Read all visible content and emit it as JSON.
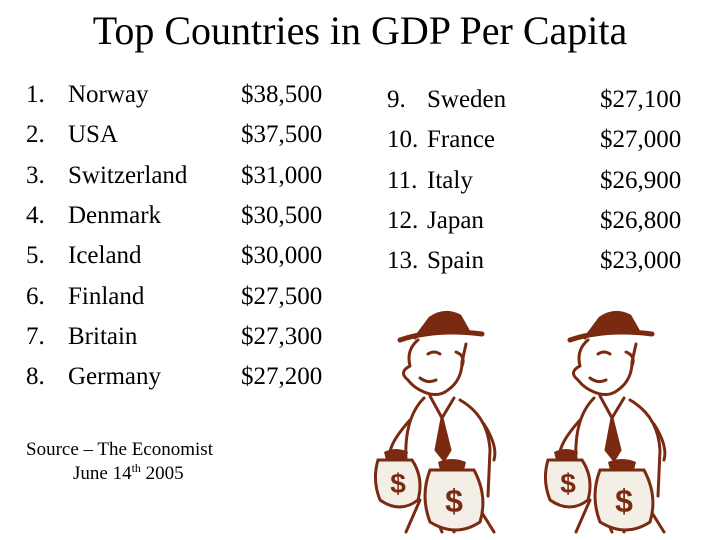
{
  "slide": {
    "title": "Top Countries in GDP Per Capita",
    "left_rows": [
      {
        "rank": "1.",
        "country": "Norway",
        "gdp": "$38,500"
      },
      {
        "rank": "2.",
        "country": "USA",
        "gdp": "$37,500"
      },
      {
        "rank": "3.",
        "country": "Switzerland",
        "gdp": "$31,000"
      },
      {
        "rank": "4.",
        "country": "Denmark",
        "gdp": "$30,500"
      },
      {
        "rank": "5.",
        "country": "Iceland",
        "gdp": "$30,000"
      },
      {
        "rank": "6.",
        "country": "Finland",
        "gdp": "$27,500"
      },
      {
        "rank": "7.",
        "country": "Britain",
        "gdp": "$27,300"
      },
      {
        "rank": "8.",
        "country": "Germany",
        "gdp": "$27,200"
      }
    ],
    "right_rows": [
      {
        "rank": "9.",
        "country": "Sweden",
        "gdp": "$27,100"
      },
      {
        "rank": "10.",
        "country": "France",
        "gdp": "$27,000"
      },
      {
        "rank": "11.",
        "country": "Italy",
        "gdp": "$26,900"
      },
      {
        "rank": "12.",
        "country": "Japan",
        "gdp": "$26,800"
      },
      {
        "rank": "13.",
        "country": "Spain",
        "gdp": "$23,000"
      }
    ],
    "source": {
      "line1": "Source – The Economist",
      "date_prefix": "June 14",
      "date_suffix": "th",
      "date_year": " 2005"
    },
    "clipart": {
      "icon": "businessman-with-money-bags-icon",
      "bag_symbol": "$",
      "color": "#7a2a10"
    }
  }
}
